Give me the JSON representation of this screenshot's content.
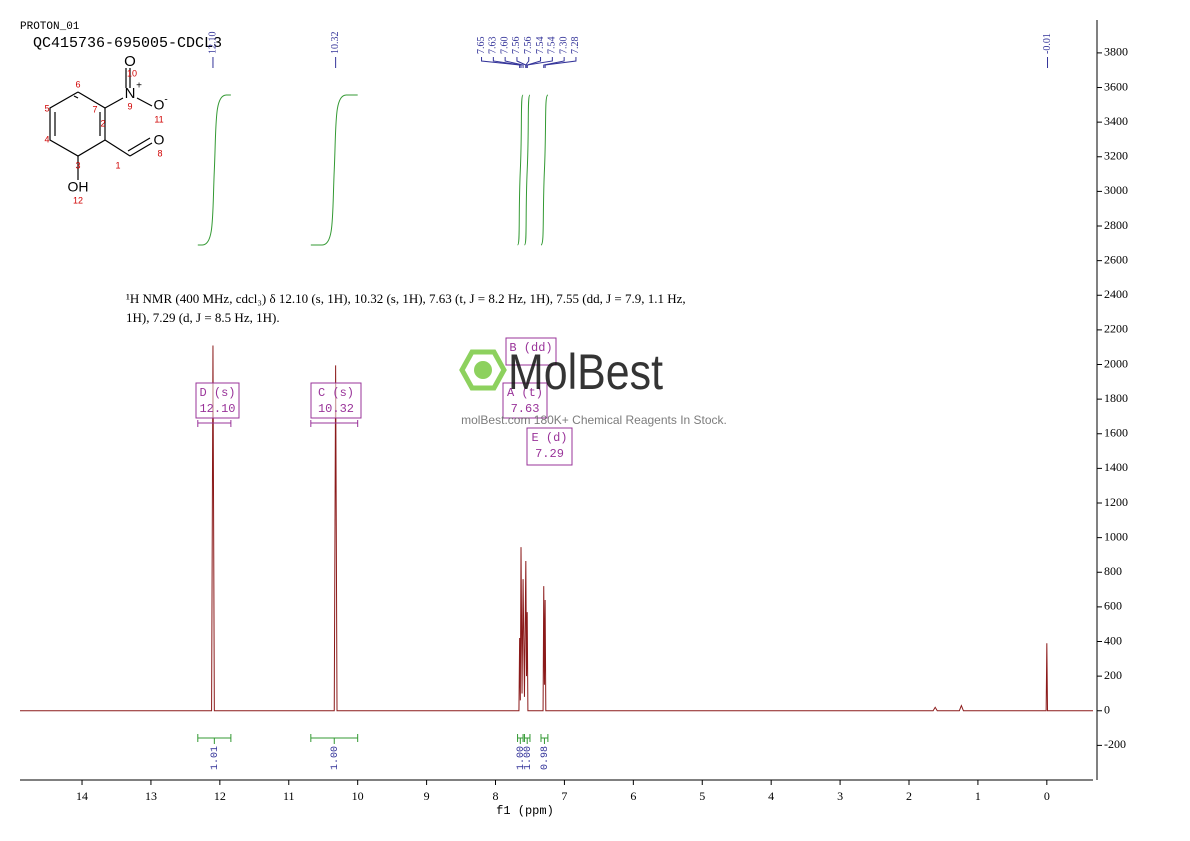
{
  "header": {
    "experiment": "PROTON_01",
    "sample": "QC415736-695005-CDCL3"
  },
  "structure": {
    "atom_labels": [
      "O",
      "N",
      "O",
      "O",
      "OH"
    ],
    "charges": [
      "+",
      "-"
    ],
    "numbers": [
      1,
      2,
      3,
      4,
      5,
      6,
      7,
      8,
      9,
      10,
      11,
      12
    ]
  },
  "description": "¹H NMR (400 MHz, cdcl₃) δ 12.10 (s, 1H), 10.32 (s, 1H), 7.63 (t, J = 8.2 Hz, 1H), 7.55 (dd, J = 7.9, 1.1 Hz, 1H), 7.29 (d, J = 8.5 Hz, 1H).",
  "watermark": {
    "brand": "MolBest",
    "tagline": "molBest.com 180K+ Chemical Reagents In Stock."
  },
  "chart_data": {
    "type": "line",
    "x_label": "f1 (ppm)",
    "xlim": [
      14.9,
      -0.67
    ],
    "xticks": [
      14,
      13,
      12,
      11,
      10,
      9,
      8,
      7,
      6,
      5,
      4,
      3,
      2,
      1,
      0
    ],
    "ylim": [
      -400,
      3990
    ],
    "yticks": [
      -200,
      0,
      200,
      400,
      600,
      800,
      1000,
      1200,
      1400,
      1600,
      1800,
      2000,
      2200,
      2400,
      2600,
      2800,
      3000,
      3200,
      3400,
      3600,
      3800
    ],
    "x": [
      14.9,
      12.12,
      12.1,
      12.08,
      10.34,
      10.32,
      10.3,
      7.66,
      7.65,
      7.64,
      7.63,
      7.615,
      7.6,
      7.58,
      7.56,
      7.55,
      7.54,
      7.53,
      7.31,
      7.3,
      7.29,
      7.28,
      7.27,
      1.65,
      1.62,
      1.59,
      1.27,
      1.24,
      1.21,
      0.01,
      0,
      -0.01,
      -0.67
    ],
    "series": [
      {
        "color": "#8b1a1a",
        "values": [
          0,
          0,
          2110,
          0,
          0,
          1995,
          0,
          0,
          420,
          60,
          945,
          100,
          760,
          80,
          865,
          200,
          570,
          0,
          0,
          720,
          150,
          640,
          0,
          0,
          20,
          0,
          0,
          30,
          0,
          0,
          390,
          0,
          0
        ]
      }
    ],
    "peak_labels": {
      "x": [
        12.1,
        10.32,
        7.65,
        7.63,
        7.6,
        7.56,
        7.56,
        7.54,
        7.54,
        7.3,
        7.28,
        -0.01
      ],
      "labels": [
        "12.10",
        "10.32",
        "7.65",
        "7.63",
        "7.60",
        "7.56",
        "7.56",
        "7.54",
        "7.54",
        "7.30",
        "7.28",
        "-0.01"
      ]
    },
    "integrals": {
      "from": [
        12.32,
        10.68,
        7.68,
        7.58,
        7.34
      ],
      "to": [
        11.84,
        10.0,
        7.6,
        7.5,
        7.24
      ],
      "values": [
        1.01,
        1,
        1,
        1,
        0.98
      ],
      "value_labels": [
        "1.01",
        "1.00",
        "1.00",
        "1.00",
        "0.98"
      ]
    },
    "multiplets": [
      {
        "name": "D (s)",
        "shift": "12.10"
      },
      {
        "name": "C (s)",
        "shift": "10.32"
      },
      {
        "name": "B (dd)"
      },
      {
        "name": "A (t)",
        "shift": "7.63"
      },
      {
        "name": "E (d)",
        "shift": "7.29"
      }
    ]
  }
}
